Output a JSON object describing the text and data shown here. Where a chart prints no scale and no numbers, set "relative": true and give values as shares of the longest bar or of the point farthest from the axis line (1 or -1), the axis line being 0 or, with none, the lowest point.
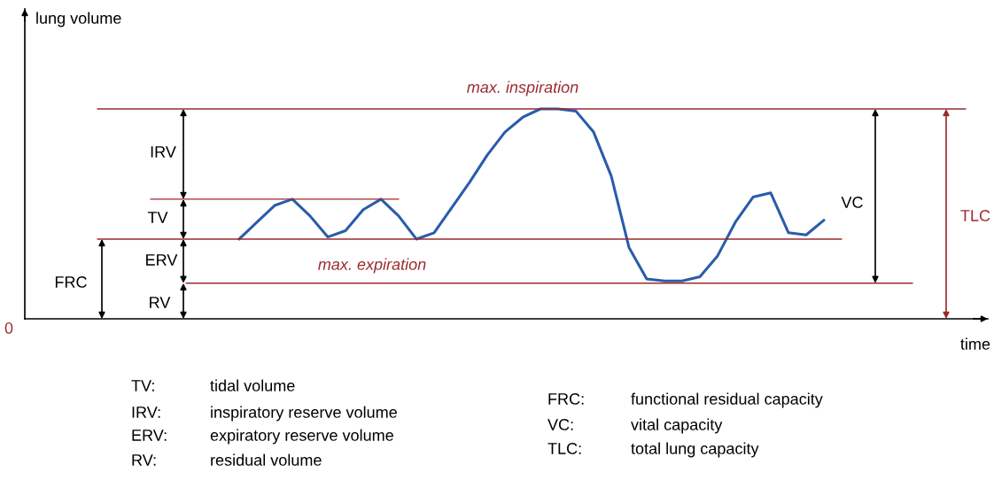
{
  "chart_data": {
    "type": "line",
    "relative": true,
    "xlabel": "time",
    "grid": false,
    "legend": false,
    "marker": "none",
    "line_style": "solid",
    "categories": [
      null,
      null,
      null,
      null,
      null,
      null,
      null,
      null,
      null,
      null,
      null,
      null,
      null,
      null,
      null,
      null,
      null,
      null,
      null,
      null,
      null,
      null,
      null,
      null,
      null,
      null,
      null,
      null,
      null,
      null,
      null,
      null,
      null,
      null,
      null,
      null,
      null,
      null,
      null,
      null,
      null,
      null,
      null,
      null,
      null,
      null,
      null,
      null,
      null,
      null,
      null,
      null,
      null,
      null,
      null
    ],
    "series": [
      {
        "color": "#2a5caa",
        "values": [
          null,
          null,
          null,
          null,
          null,
          null,
          null,
          null,
          null,
          null,
          null,
          null,
          0.38,
          0.46,
          0.54,
          0.57,
          0.49,
          0.39,
          0.42,
          0.52,
          0.57,
          0.49,
          0.38,
          0.41,
          0.53,
          0.65,
          0.78,
          0.89,
          0.96,
          1.0,
          1.0,
          0.99,
          0.89,
          0.68,
          0.34,
          0.19,
          0.18,
          0.18,
          0.2,
          0.3,
          0.46,
          0.58,
          0.6,
          0.41,
          0.4,
          0.47,
          null,
          null,
          null,
          null,
          null,
          null,
          null,
          null,
          null
        ]
      },
      {
        "color": "#9b2a2f",
        "values": [
          null,
          null,
          null,
          null,
          1.0,
          1.0,
          1.0,
          1.0,
          1.0,
          1.0,
          1.0,
          1.0,
          1.0,
          1.0,
          1.0,
          1.0,
          1.0,
          1.0,
          1.0,
          1.0,
          1.0,
          1.0,
          1.0,
          1.0,
          1.0,
          1.0,
          1.0,
          1.0,
          1.0,
          1.0,
          1.0,
          1.0,
          1.0,
          1.0,
          1.0,
          1.0,
          1.0,
          1.0,
          1.0,
          1.0,
          1.0,
          1.0,
          1.0,
          1.0,
          1.0,
          1.0,
          1.0,
          1.0,
          1.0,
          1.0,
          1.0,
          1.0,
          1.0,
          1.0,
          null
        ]
      },
      {
        "color": "#9b2a2f",
        "values": [
          null,
          null,
          null,
          null,
          null,
          null,
          null,
          0.57,
          0.57,
          0.57,
          0.57,
          0.57,
          0.57,
          0.57,
          0.57,
          0.57,
          0.57,
          0.57,
          0.57,
          0.57,
          0.57,
          0.57,
          null,
          null,
          null,
          null,
          null,
          null,
          null,
          null,
          null,
          null,
          null,
          null,
          null,
          null,
          null,
          null,
          null,
          null,
          null,
          null,
          null,
          null,
          null,
          null,
          null,
          null,
          null,
          null,
          null,
          null,
          null,
          null,
          null
        ]
      },
      {
        "color": "#9b2a2f",
        "values": [
          null,
          null,
          null,
          null,
          0.38,
          0.38,
          0.38,
          0.38,
          0.38,
          0.38,
          0.38,
          0.38,
          0.38,
          0.38,
          0.38,
          0.38,
          0.38,
          0.38,
          0.38,
          0.38,
          0.38,
          0.38,
          0.38,
          0.38,
          0.38,
          0.38,
          0.38,
          0.38,
          0.38,
          0.38,
          0.38,
          0.38,
          0.38,
          0.38,
          0.38,
          0.38,
          0.38,
          0.38,
          0.38,
          0.38,
          0.38,
          0.38,
          0.38,
          0.38,
          0.38,
          0.38,
          0.38,
          null,
          null,
          null,
          null,
          null,
          null,
          null,
          null
        ]
      },
      {
        "color": "#9b2a2f",
        "values": [
          null,
          null,
          null,
          null,
          null,
          null,
          null,
          null,
          null,
          0.17,
          0.17,
          0.17,
          0.17,
          0.17,
          0.17,
          0.17,
          0.17,
          0.17,
          0.17,
          0.17,
          0.17,
          0.17,
          0.17,
          0.17,
          0.17,
          0.17,
          0.17,
          0.17,
          0.17,
          0.17,
          0.17,
          0.17,
          0.17,
          0.17,
          0.17,
          0.17,
          0.17,
          0.17,
          0.17,
          0.17,
          0.17,
          0.17,
          0.17,
          0.17,
          0.17,
          0.17,
          0.17,
          0.17,
          0.17,
          0.17,
          0.17,
          null,
          null,
          null,
          null
        ]
      }
    ],
    "annotations": [
      "lung volume",
      "0",
      "max. inspiration",
      "max. expiration",
      "IRV",
      "TV",
      "ERV",
      "RV",
      "FRC",
      "VC",
      "TLC",
      "TV:",
      "tidal volume",
      "IRV:",
      "inspiratory reserve volume",
      "ERV:",
      "expiratory reserve volume",
      "RV:",
      "residual volume",
      "FRC:",
      "functional residual capacity",
      "VC:",
      "vital capacity",
      "TLC:",
      "total lung capacity"
    ]
  }
}
